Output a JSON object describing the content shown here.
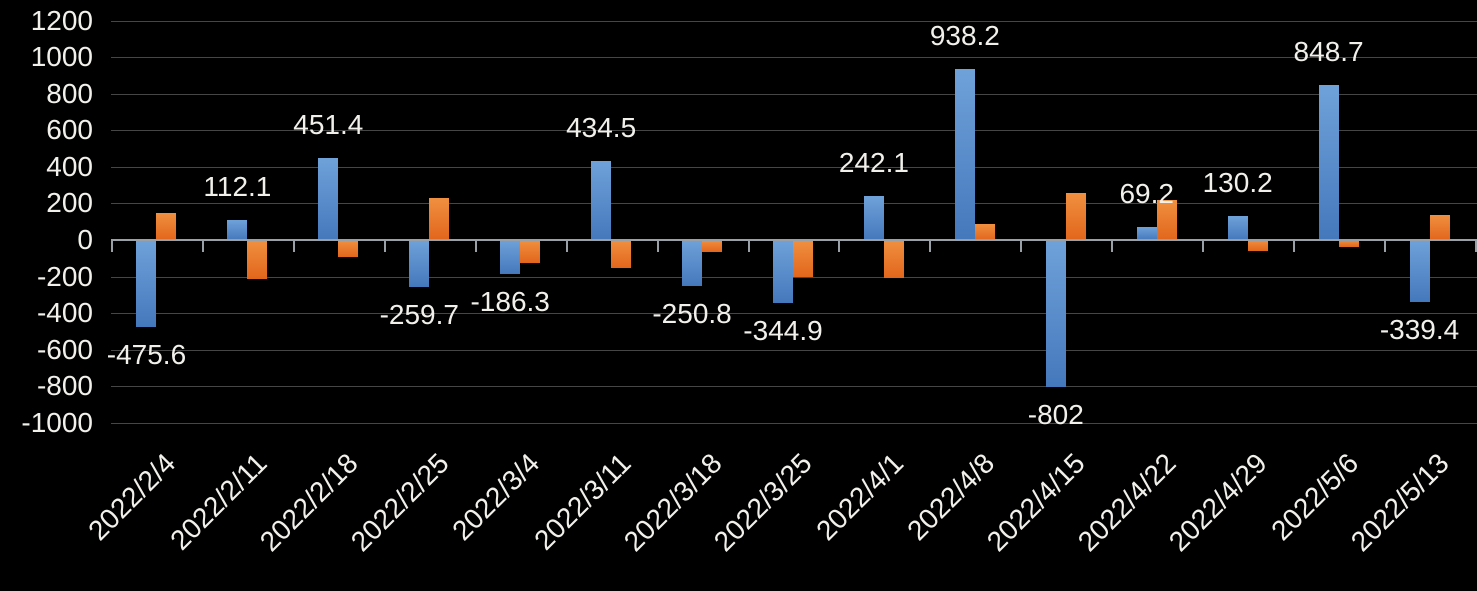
{
  "chart_data": {
    "type": "bar",
    "title": "",
    "categories": [
      "2022/2/4",
      "2022/2/11",
      "2022/2/18",
      "2022/2/25",
      "2022/3/4",
      "2022/3/11",
      "2022/3/18",
      "2022/3/25",
      "2022/4/1",
      "2022/4/8",
      "2022/4/15",
      "2022/4/22",
      "2022/4/29",
      "2022/5/6",
      "2022/5/13"
    ],
    "series": [
      {
        "name": "blue-series",
        "values": [
          -475.6,
          112.1,
          451.4,
          -259.7,
          -186.3,
          434.5,
          -250.8,
          -344.9,
          242.1,
          938.2,
          -802,
          69.2,
          130.2,
          848.7,
          -339.4
        ],
        "data_labels": [
          "-475.6",
          "112.1",
          "451.4",
          "-259.7",
          "-186.3",
          "434.5",
          "-250.8",
          "-344.9",
          "242.1",
          "938.2",
          "-802",
          "69.2",
          "130.2",
          "848.7",
          "-339.4"
        ],
        "color_top": "#6FA2D9",
        "color_bottom": "#4478BC"
      },
      {
        "name": "orange-series",
        "values": [
          150,
          -215,
          -95,
          230,
          -125,
          -155,
          -65,
          -205,
          -210,
          85,
          255,
          220,
          -60,
          -40,
          135
        ],
        "data_labels": [],
        "color_top": "#F09040",
        "color_bottom": "#E2661C"
      }
    ],
    "y_axis": {
      "min": -1000,
      "max": 1200,
      "step": 200,
      "tick_labels": [
        "1200",
        "1000",
        "800",
        "600",
        "400",
        "200",
        "0",
        "-200",
        "-400",
        "-600",
        "-800",
        "-1000"
      ]
    },
    "x_axis": {
      "label_rotation_deg": -45
    },
    "grid": true,
    "legend": "none"
  },
  "colors": {
    "background": "#000000",
    "gridline": "#464646",
    "axis_line": "#99A0A7",
    "text": "#F2F0EB",
    "bar_blue": "#5B94CE",
    "bar_orange": "#ED7D31"
  }
}
